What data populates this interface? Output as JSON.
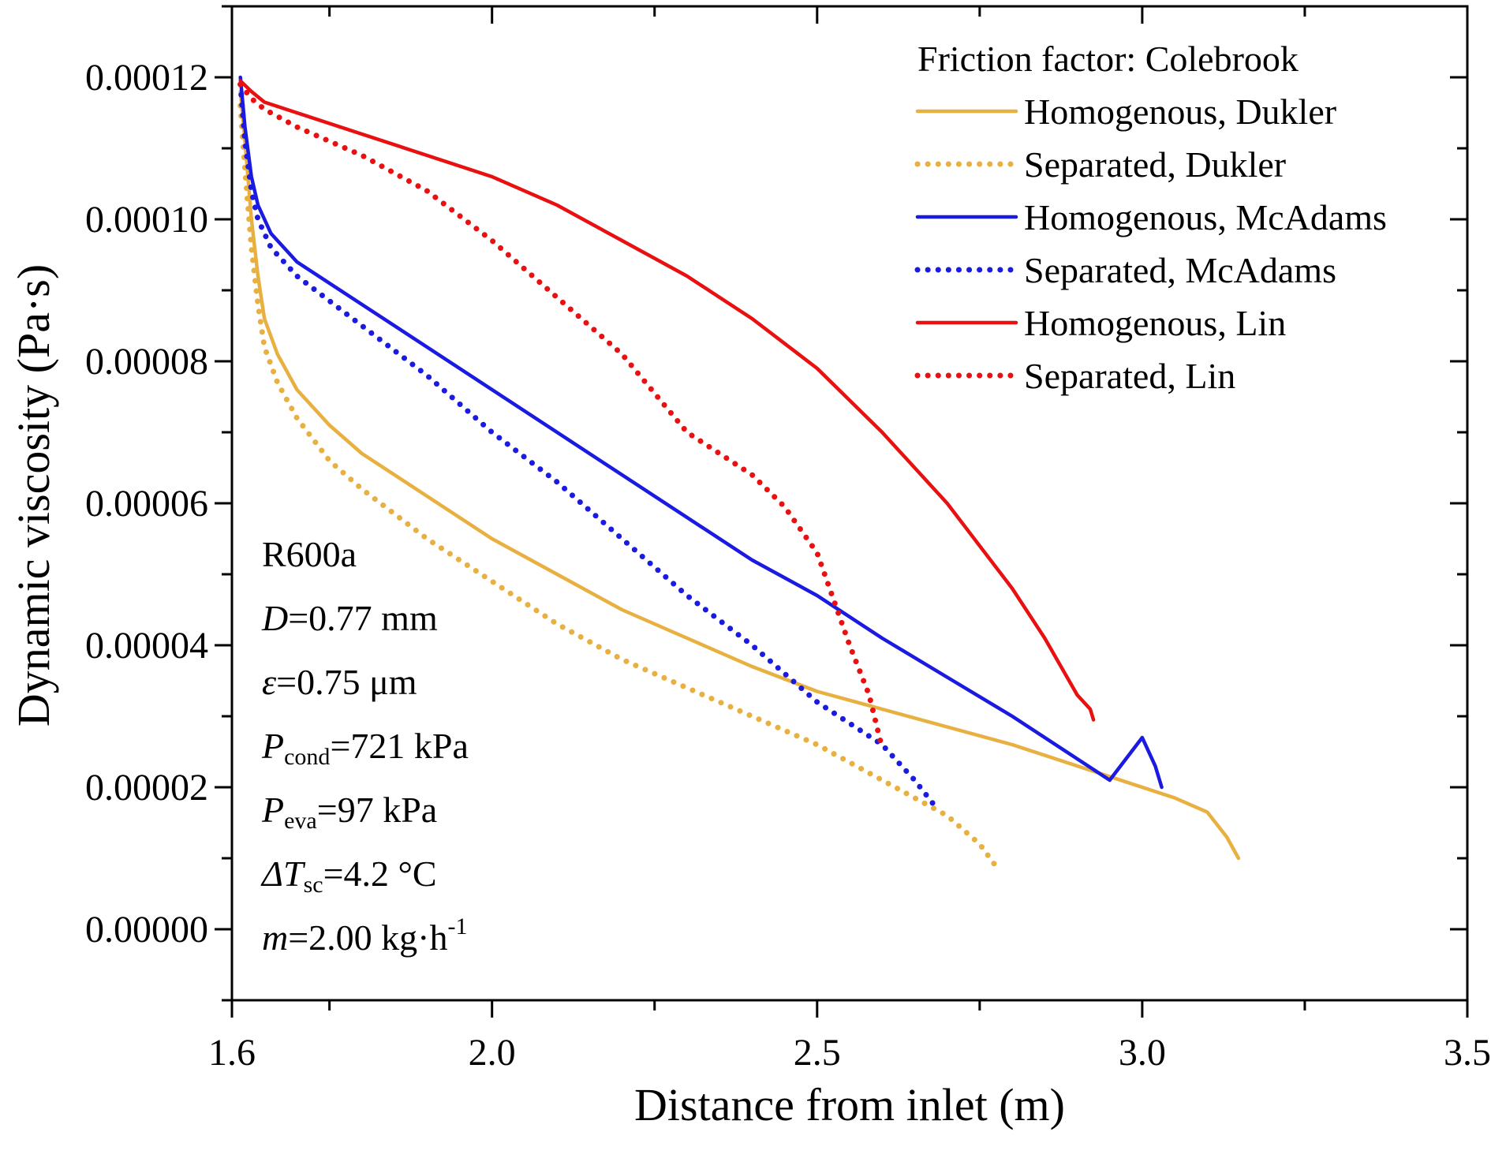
{
  "chart_data": {
    "type": "line",
    "title": "",
    "xlabel": "Distance from inlet (m)",
    "ylabel": "Dynamic viscosity (Pa·s)",
    "xlim": [
      1.6,
      3.5
    ],
    "ylim": [
      -1e-05,
      0.00013
    ],
    "x_ticks": [
      1.6,
      2.0,
      2.5,
      3.0,
      3.5
    ],
    "x_tick_labels": [
      "1.6",
      "2.0",
      "2.5",
      "3.0",
      "3.5"
    ],
    "x_minor_ticks": [
      1.75,
      2.25,
      2.75,
      3.25
    ],
    "y_ticks": [
      0.0,
      2e-05,
      4e-05,
      6e-05,
      8e-05,
      0.0001,
      0.00012
    ],
    "y_tick_labels": [
      "0.00000",
      "0.00002",
      "0.00004",
      "0.00006",
      "0.00008",
      "0.00010",
      "0.00012"
    ],
    "y_minor_ticks": [
      -1e-05,
      1e-05,
      3e-05,
      5e-05,
      7e-05,
      9e-05,
      0.00011,
      0.00013
    ],
    "grid": false,
    "legend": {
      "title": "Friction factor: Colebrook",
      "placement": "top-right"
    },
    "series": [
      {
        "name": "Homogenous, Dukler",
        "color": "#e8b040",
        "style": "solid",
        "x": [
          1.613,
          1.62,
          1.63,
          1.64,
          1.65,
          1.67,
          1.7,
          1.75,
          1.8,
          1.9,
          2.0,
          2.1,
          2.2,
          2.3,
          2.4,
          2.5,
          2.6,
          2.7,
          2.8,
          2.9,
          3.0,
          3.05,
          3.1,
          3.13,
          3.148
        ],
        "y": [
          0.000118,
          0.000111,
          0.0001,
          9.2e-05,
          8.6e-05,
          8.1e-05,
          7.6e-05,
          7.1e-05,
          6.7e-05,
          6.1e-05,
          5.5e-05,
          5e-05,
          4.5e-05,
          4.1e-05,
          3.7e-05,
          3.35e-05,
          3.1e-05,
          2.85e-05,
          2.6e-05,
          2.3e-05,
          2e-05,
          1.85e-05,
          1.65e-05,
          1.3e-05,
          1e-05
        ]
      },
      {
        "name": "Separated, Dukler",
        "color": "#e8b040",
        "style": "dotted",
        "x": [
          1.613,
          1.62,
          1.63,
          1.64,
          1.65,
          1.67,
          1.7,
          1.75,
          1.8,
          1.9,
          2.0,
          2.1,
          2.2,
          2.3,
          2.4,
          2.5,
          2.6,
          2.7,
          2.75,
          2.778
        ],
        "y": [
          0.000116,
          0.000107,
          9.6e-05,
          8.8e-05,
          8.2e-05,
          7.7e-05,
          7.2e-05,
          6.6e-05,
          6.2e-05,
          5.5e-05,
          4.9e-05,
          4.3e-05,
          3.8e-05,
          3.4e-05,
          3e-05,
          2.6e-05,
          2.1e-05,
          1.6e-05,
          1.2e-05,
          8.5e-06
        ]
      },
      {
        "name": "Homogenous, McAdams",
        "color": "#1a1ae0",
        "style": "solid",
        "x": [
          1.613,
          1.62,
          1.63,
          1.64,
          1.66,
          1.7,
          1.8,
          1.9,
          2.0,
          2.1,
          2.2,
          2.3,
          2.4,
          2.5,
          2.6,
          2.7,
          2.8,
          2.9,
          2.95,
          3.0,
          3.02,
          3.03
        ],
        "y": [
          0.00012,
          0.000113,
          0.000106,
          0.000102,
          9.8e-05,
          9.4e-05,
          8.8e-05,
          8.2e-05,
          7.6e-05,
          7e-05,
          6.4e-05,
          5.8e-05,
          5.2e-05,
          4.7e-05,
          4.1e-05,
          3.55e-05,
          3e-05,
          2.4e-05,
          2.1e-05,
          2.7e-05,
          2.3e-05,
          2e-05
        ]
      },
      {
        "name": "Separated, McAdams",
        "color": "#1a1ae0",
        "style": "dotted",
        "x": [
          1.613,
          1.62,
          1.63,
          1.64,
          1.66,
          1.7,
          1.8,
          1.9,
          2.0,
          2.1,
          2.2,
          2.3,
          2.4,
          2.5,
          2.6,
          2.65,
          2.68
        ],
        "y": [
          0.000119,
          0.000111,
          0.000104,
          0.0001,
          9.6e-05,
          9.2e-05,
          8.5e-05,
          7.8e-05,
          7e-05,
          6.3e-05,
          5.5e-05,
          4.7e-05,
          4e-05,
          3.2e-05,
          2.6e-05,
          2.1e-05,
          1.75e-05
        ]
      },
      {
        "name": "Homogenous, Lin",
        "color": "#e81010",
        "style": "solid",
        "x": [
          1.613,
          1.63,
          1.65,
          1.7,
          1.8,
          1.9,
          2.0,
          2.1,
          2.2,
          2.3,
          2.4,
          2.5,
          2.6,
          2.7,
          2.8,
          2.85,
          2.9,
          2.92,
          2.925
        ],
        "y": [
          0.0001195,
          0.000118,
          0.0001165,
          0.000115,
          0.000112,
          0.000109,
          0.000106,
          0.000102,
          9.7e-05,
          9.2e-05,
          8.6e-05,
          7.9e-05,
          7e-05,
          6e-05,
          4.8e-05,
          4.1e-05,
          3.3e-05,
          3.1e-05,
          2.95e-05
        ]
      },
      {
        "name": "Separated, Lin",
        "color": "#e81010",
        "style": "dotted",
        "x": [
          1.613,
          1.63,
          1.65,
          1.7,
          1.8,
          1.9,
          2.0,
          2.1,
          2.2,
          2.3,
          2.4,
          2.45,
          2.5,
          2.55,
          2.58,
          2.6
        ],
        "y": [
          0.000119,
          0.000117,
          0.0001155,
          0.000113,
          0.000109,
          0.000104,
          9.7e-05,
          8.9e-05,
          8.1e-05,
          7e-05,
          6.4e-05,
          5.95e-05,
          5.3e-05,
          4e-05,
          3.3e-05,
          2.55e-05
        ]
      }
    ],
    "annotations": [
      {
        "main": "R600a"
      },
      {
        "italic": "D",
        "main": "=0.77 mm"
      },
      {
        "italic": "ε",
        "main": "=0.75 μm"
      },
      {
        "italic": "P",
        "sub": "cond",
        "main": "=721 kPa"
      },
      {
        "italic": "P",
        "sub": "eva",
        "main": "=97 kPa"
      },
      {
        "italic": "ΔT",
        "sub": "sc",
        "main": "=4.2 °C"
      },
      {
        "italic": "m",
        "main": "=2.00 kg·h",
        "sup": "-1"
      }
    ]
  }
}
